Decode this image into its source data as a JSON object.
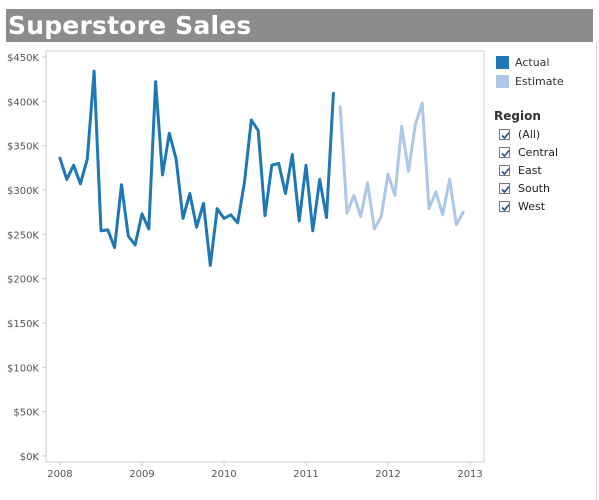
{
  "title": "Superstore Sales",
  "legend": {
    "items": [
      {
        "label": "Actual",
        "color": "#1f77b4"
      },
      {
        "label": "Estimate",
        "color": "#aec7e8"
      }
    ]
  },
  "filter": {
    "title": "Region",
    "options": [
      {
        "label": "(All)",
        "checked": true
      },
      {
        "label": "Central",
        "checked": true
      },
      {
        "label": "East",
        "checked": true
      },
      {
        "label": "South",
        "checked": true
      },
      {
        "label": "West",
        "checked": true
      }
    ]
  },
  "chart_data": {
    "type": "line",
    "title": "Superstore Sales",
    "xlabel": "",
    "ylabel": "",
    "ylim": [
      0,
      450000
    ],
    "xlim": [
      2007.83,
      2013.17
    ],
    "yticks": [
      {
        "value": 450000,
        "label": "$450K"
      },
      {
        "value": 400000,
        "label": "$400K"
      },
      {
        "value": 350000,
        "label": "$350K"
      },
      {
        "value": 300000,
        "label": "$300K"
      },
      {
        "value": 250000,
        "label": "$250K"
      },
      {
        "value": 200000,
        "label": "$200K"
      },
      {
        "value": 150000,
        "label": "$150K"
      },
      {
        "value": 100000,
        "label": "$100K"
      },
      {
        "value": 50000,
        "label": "$50K"
      },
      {
        "value": 0,
        "label": "$0K"
      }
    ],
    "xticks": [
      {
        "value": 2008,
        "label": "2008"
      },
      {
        "value": 2009,
        "label": "2009"
      },
      {
        "value": 2010,
        "label": "2010"
      },
      {
        "value": 2011,
        "label": "2011"
      },
      {
        "value": 2012,
        "label": "2012"
      },
      {
        "value": 2013,
        "label": "2013"
      }
    ],
    "grid": false,
    "legend_position": "top-right",
    "series": [
      {
        "name": "Actual",
        "color": "#1f77b4",
        "x": [
          "2008-01",
          "2008-02",
          "2008-03",
          "2008-04",
          "2008-05",
          "2008-06",
          "2008-07",
          "2008-08",
          "2008-09",
          "2008-10",
          "2008-11",
          "2008-12",
          "2009-01",
          "2009-02",
          "2009-03",
          "2009-04",
          "2009-05",
          "2009-06",
          "2009-07",
          "2009-08",
          "2009-09",
          "2009-10",
          "2009-11",
          "2009-12",
          "2010-01",
          "2010-02",
          "2010-03",
          "2010-04",
          "2010-05",
          "2010-06",
          "2010-07",
          "2010-08",
          "2010-09",
          "2010-10",
          "2010-11",
          "2010-12",
          "2011-01",
          "2011-02",
          "2011-03",
          "2011-04",
          "2011-05",
          "2011-06"
        ],
        "values": [
          336000,
          312000,
          328000,
          307000,
          335000,
          434000,
          254000,
          255000,
          235000,
          306000,
          248000,
          238000,
          273000,
          256000,
          422000,
          317000,
          364000,
          335000,
          268000,
          296000,
          258000,
          285000,
          215000,
          279000,
          268000,
          272000,
          263000,
          309000,
          379000,
          367000,
          271000,
          328000,
          330000,
          296000,
          340000,
          265000,
          328000,
          254000,
          312000,
          269000,
          409000,
          null
        ]
      },
      {
        "name": "Estimate",
        "color": "#aec7e8",
        "x": [
          "2011-06",
          "2011-07",
          "2011-08",
          "2011-09",
          "2011-10",
          "2011-11",
          "2011-12",
          "2012-01",
          "2012-02",
          "2012-03",
          "2012-04",
          "2012-05",
          "2012-06",
          "2012-07",
          "2012-08",
          "2012-09",
          "2012-10",
          "2012-11",
          "2012-12"
        ],
        "values": [
          394000,
          274000,
          294000,
          270000,
          308000,
          256000,
          270000,
          318000,
          294000,
          372000,
          321000,
          374000,
          398000,
          279000,
          298000,
          272000,
          312000,
          261000,
          275000
        ]
      }
    ]
  }
}
